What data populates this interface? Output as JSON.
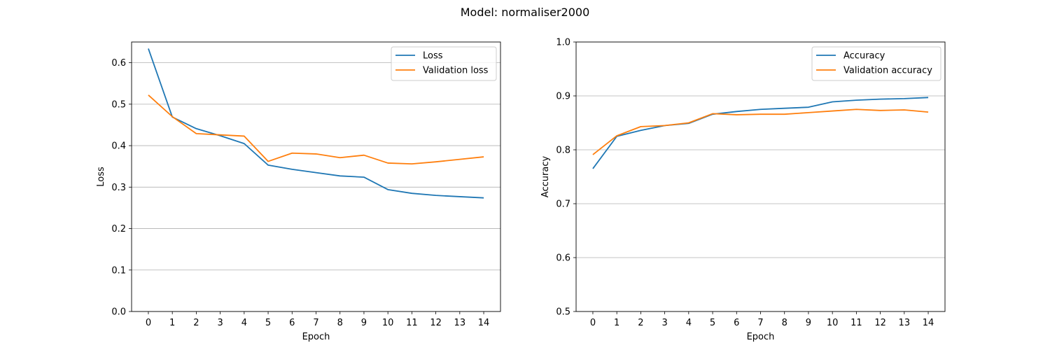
{
  "suptitle": "Model: normaliser2000",
  "chart_data": [
    {
      "type": "line",
      "xlabel": "Epoch",
      "ylabel": "Loss",
      "x": [
        0,
        1,
        2,
        3,
        4,
        5,
        6,
        7,
        8,
        9,
        10,
        11,
        12,
        13,
        14
      ],
      "xticks": [
        0,
        1,
        2,
        3,
        4,
        5,
        6,
        7,
        8,
        9,
        10,
        11,
        12,
        13,
        14
      ],
      "ylim": [
        0,
        0.65
      ],
      "yticks": [
        0.0,
        0.1,
        0.2,
        0.3,
        0.4,
        0.5,
        0.6
      ],
      "ytick_labels": [
        "0.0",
        "0.1",
        "0.2",
        "0.3",
        "0.4",
        "0.5",
        "0.6"
      ],
      "grid": "y",
      "legend_position": "upper right",
      "series": [
        {
          "name": "Loss",
          "color": "#1f77b4",
          "values": [
            0.634,
            0.469,
            0.441,
            0.424,
            0.405,
            0.353,
            0.343,
            0.335,
            0.327,
            0.324,
            0.294,
            0.285,
            0.28,
            0.277,
            0.274
          ]
        },
        {
          "name": "Validation loss",
          "color": "#ff7f0e",
          "values": [
            0.522,
            0.47,
            0.429,
            0.426,
            0.423,
            0.362,
            0.382,
            0.38,
            0.371,
            0.377,
            0.358,
            0.356,
            0.361,
            0.367,
            0.373
          ]
        }
      ]
    },
    {
      "type": "line",
      "xlabel": "Epoch",
      "ylabel": "Accuracy",
      "x": [
        0,
        1,
        2,
        3,
        4,
        5,
        6,
        7,
        8,
        9,
        10,
        11,
        12,
        13,
        14
      ],
      "xticks": [
        0,
        1,
        2,
        3,
        4,
        5,
        6,
        7,
        8,
        9,
        10,
        11,
        12,
        13,
        14
      ],
      "ylim": [
        0.5,
        1.0
      ],
      "yticks": [
        0.5,
        0.6,
        0.7,
        0.8,
        0.9,
        1.0
      ],
      "ytick_labels": [
        "0.5",
        "0.6",
        "0.7",
        "0.8",
        "0.9",
        "1.0"
      ],
      "grid": "y",
      "legend_position": "upper right",
      "series": [
        {
          "name": "Accuracy",
          "color": "#1f77b4",
          "values": [
            0.765,
            0.825,
            0.836,
            0.845,
            0.849,
            0.866,
            0.871,
            0.875,
            0.877,
            0.879,
            0.889,
            0.892,
            0.894,
            0.895,
            0.897
          ]
        },
        {
          "name": "Validation accuracy",
          "color": "#ff7f0e",
          "values": [
            0.791,
            0.826,
            0.843,
            0.845,
            0.85,
            0.867,
            0.865,
            0.866,
            0.866,
            0.869,
            0.872,
            0.875,
            0.873,
            0.874,
            0.87
          ]
        }
      ]
    }
  ]
}
